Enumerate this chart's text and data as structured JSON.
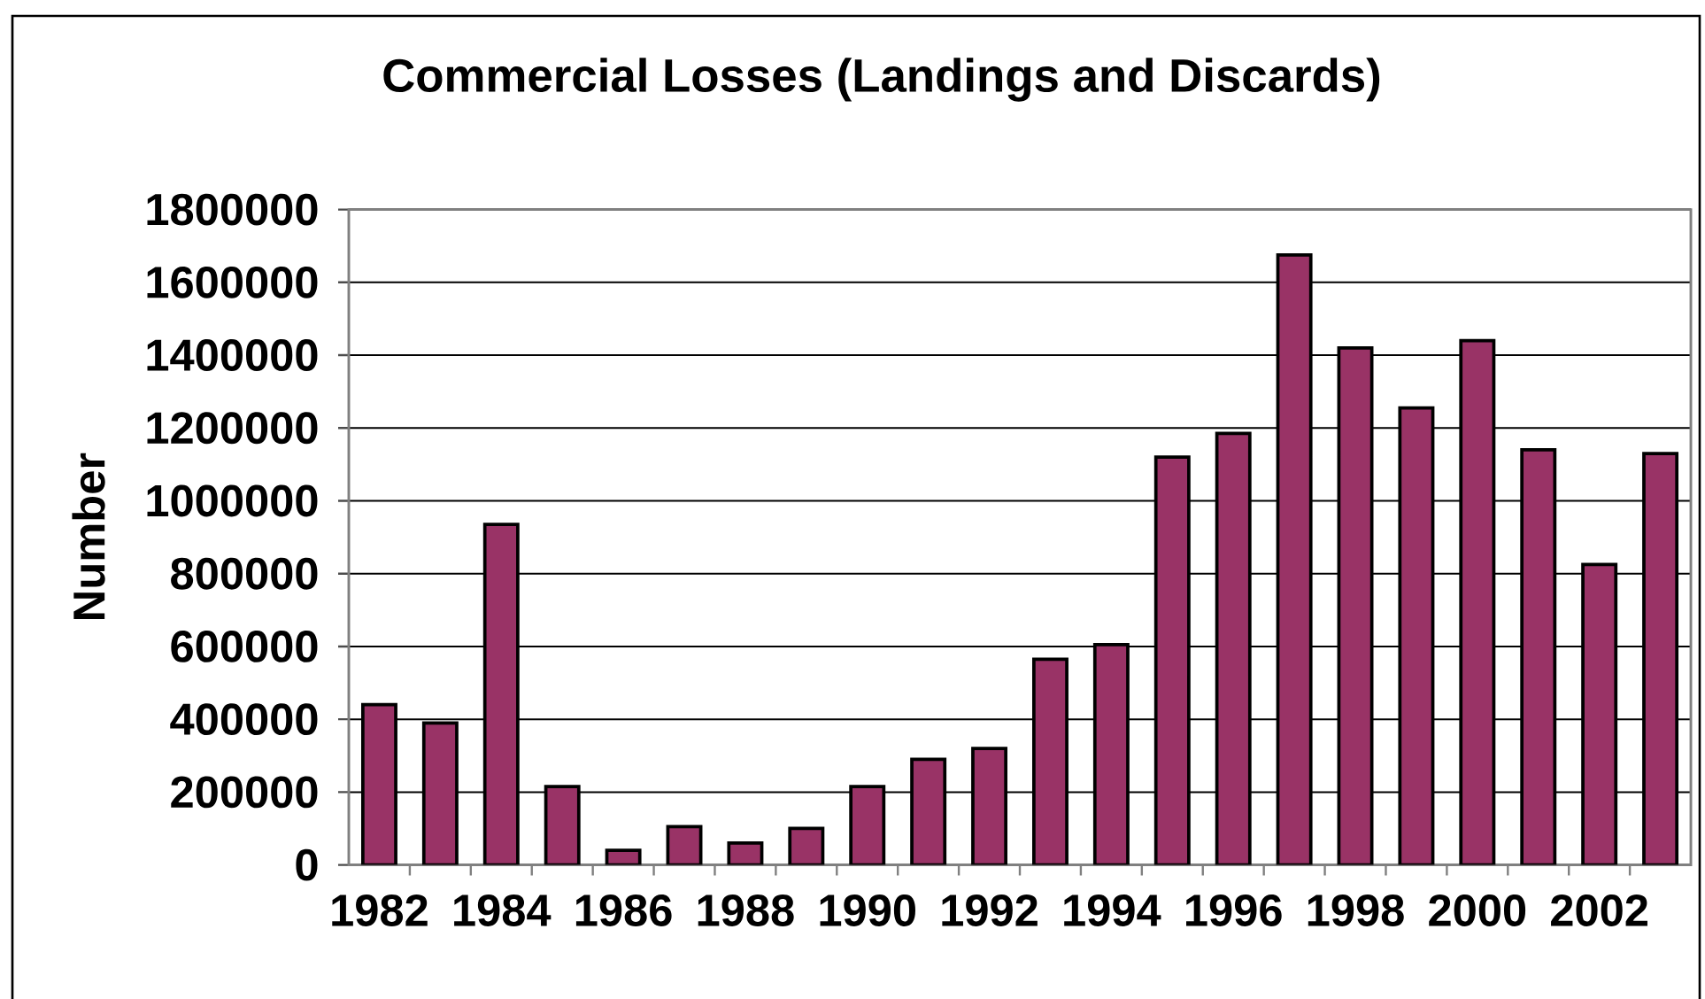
{
  "chart_data": {
    "type": "bar",
    "title": "Commercial Losses (Landings and Discards)",
    "ylabel": "Number",
    "categories": [
      "1982",
      null,
      "1984",
      null,
      "1986",
      null,
      "1988",
      null,
      "1990",
      null,
      "1992",
      null,
      "1994",
      null,
      "1996",
      null,
      "1998",
      null,
      "2000",
      null,
      "2002",
      null
    ],
    "values": [
      440000,
      390000,
      935000,
      215000,
      40000,
      105000,
      60000,
      100000,
      215000,
      290000,
      320000,
      565000,
      605000,
      1120000,
      1185000,
      1675000,
      1420000,
      1255000,
      1440000,
      1140000,
      825000,
      1130000
    ],
    "color": "#993366",
    "ylim": [
      0,
      1800000
    ],
    "yticks": [
      0,
      200000,
      400000,
      600000,
      800000,
      1000000,
      1200000,
      1400000,
      1600000,
      1800000
    ],
    "grid": "y"
  }
}
